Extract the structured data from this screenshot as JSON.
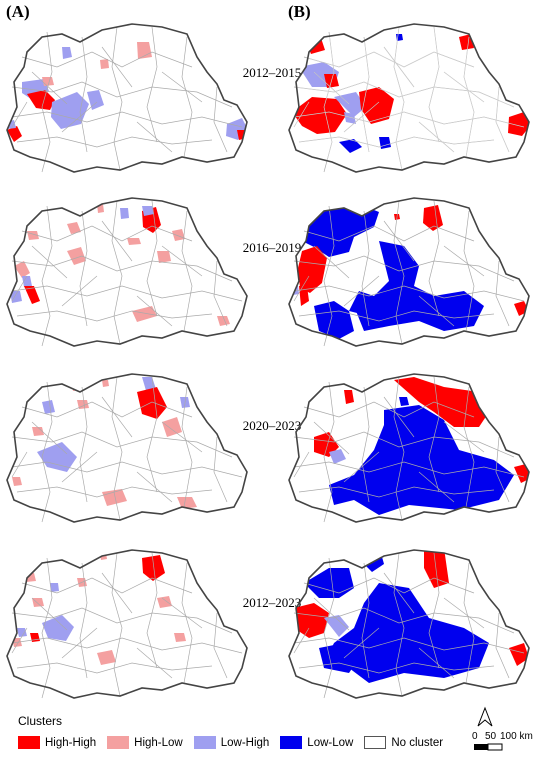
{
  "panels": {
    "a": "(A)",
    "b": "(B)"
  },
  "periods": [
    "2012–2015",
    "2016–2019",
    "2020–2023",
    "2012–2023"
  ],
  "legend": {
    "title": "Clusters",
    "items": [
      {
        "label": "High-High",
        "color": "#ff0000"
      },
      {
        "label": "High-Low",
        "color": "#f4a0a0"
      },
      {
        "label": "Low-High",
        "color": "#9f9ff0"
      },
      {
        "label": "Low-Low",
        "color": "#0000ee"
      },
      {
        "label": "No cluster",
        "color": "#ffffff"
      }
    ]
  },
  "scale": {
    "ticks": [
      "0",
      "50",
      "100 km"
    ]
  },
  "icons": {
    "north": "north-arrow-icon"
  }
}
